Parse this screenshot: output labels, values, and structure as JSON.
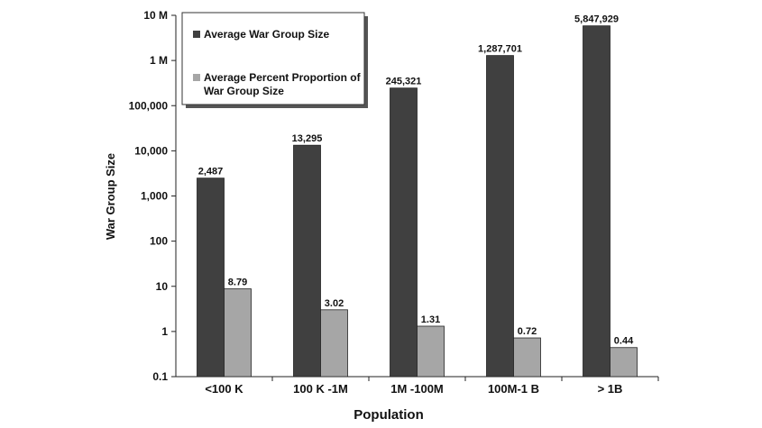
{
  "chart_data": {
    "type": "bar",
    "xlabel": "Population",
    "ylabel": "War Group Size",
    "yscale": "log",
    "ylim": [
      0.1,
      10000000
    ],
    "yticks": [
      {
        "value": 10000000,
        "label": "10 M"
      },
      {
        "value": 1000000,
        "label": "1 M"
      },
      {
        "value": 100000,
        "label": "100,000"
      },
      {
        "value": 10000,
        "label": "10,000"
      },
      {
        "value": 1000,
        "label": "1,000"
      },
      {
        "value": 100,
        "label": "100"
      },
      {
        "value": 10,
        "label": "10"
      },
      {
        "value": 1,
        "label": "1"
      },
      {
        "value": 0.1,
        "label": "0.1"
      }
    ],
    "categories": [
      "<100 K",
      "100 K -1M",
      "1M -100M",
      "100M-1 B",
      "> 1B"
    ],
    "series": [
      {
        "name": "Average War Group Size",
        "color": "#404040",
        "values": [
          2487,
          13295,
          245321,
          1287701,
          5847929
        ],
        "labels": [
          "2,487",
          "13,295",
          "245,321",
          "1,287,701",
          "5,847,929"
        ]
      },
      {
        "name": "Average Percent Proportion of War Group Size",
        "color": "#a6a6a6",
        "values": [
          8.79,
          3.02,
          1.31,
          0.72,
          0.44
        ],
        "labels": [
          "8.79",
          "3.02",
          "1.31",
          "0.72",
          "0.44"
        ]
      }
    ],
    "legend_position": "top-left",
    "grid": false
  }
}
